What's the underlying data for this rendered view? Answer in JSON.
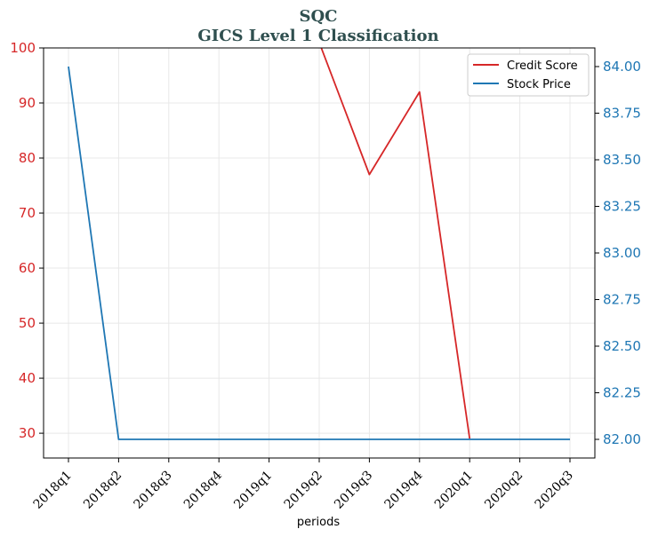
{
  "chart_data": {
    "type": "line",
    "title": "SQC",
    "subtitle": "GICS Level 1 Classification",
    "xlabel": "periods",
    "categories": [
      "2018q1",
      "2018q2",
      "2018q3",
      "2018q4",
      "2019q1",
      "2019q2",
      "2019q3",
      "2019q4",
      "2020q1",
      "2020q2",
      "2020q3"
    ],
    "left_axis": {
      "ylim": [
        25.5,
        100
      ],
      "ticks": [
        "30",
        "40",
        "50",
        "60",
        "70",
        "80",
        "90",
        "100"
      ],
      "color": "#d62728"
    },
    "right_axis": {
      "ylim": [
        81.9,
        84.1
      ],
      "ticks": [
        "82.00",
        "82.25",
        "82.50",
        "82.75",
        "83.00",
        "83.25",
        "83.50",
        "83.75",
        "84.00"
      ],
      "color": "#1f77b4"
    },
    "series": [
      {
        "name": "Credit Score",
        "axis": "left",
        "color": "#d62728",
        "values": [
          null,
          null,
          null,
          null,
          null,
          101,
          77,
          92,
          29,
          null,
          null
        ]
      },
      {
        "name": "Stock Price",
        "axis": "right",
        "color": "#1f77b4",
        "values": [
          84.0,
          82.0,
          82.0,
          82.0,
          82.0,
          82.0,
          82.0,
          82.0,
          82.0,
          82.0,
          82.0
        ]
      }
    ],
    "legend_position": "top-right",
    "grid": true
  }
}
